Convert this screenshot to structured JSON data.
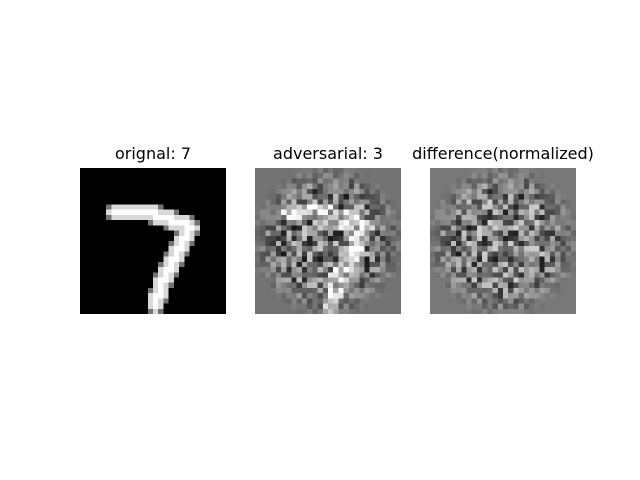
{
  "figure": {
    "panels": [
      {
        "title": "orignal: 7",
        "content": "handwritten digit 7, white strokes on black"
      },
      {
        "title": "adversarial: 3",
        "content": "digit 7 overlaid with grayscale noise"
      },
      {
        "title": "difference(normalized)",
        "content": "grayscale noise pattern"
      }
    ]
  }
}
